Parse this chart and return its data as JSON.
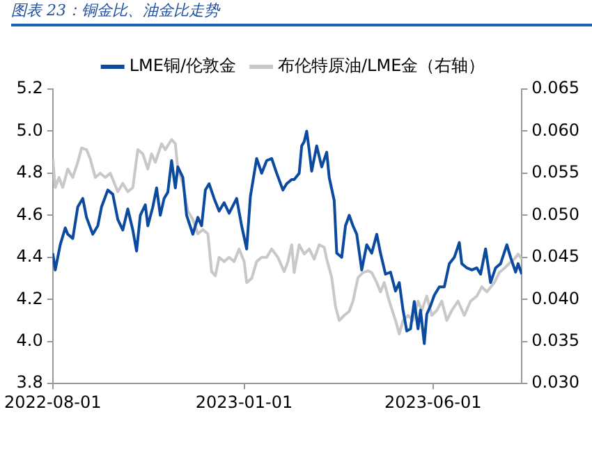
{
  "chart_data": {
    "type": "line",
    "title": "图表 23：铜金比、油金比走势",
    "xlim": [
      "2022-08-01",
      "2023-08-11"
    ],
    "xticks": [
      "2022-08-01",
      "2023-01-01",
      "2023-06-01"
    ],
    "ylim": [
      3.8,
      5.2
    ],
    "yticks": [
      3.8,
      {
        "value": 4,
        "label": "4.0"
      },
      4.2,
      4.4,
      4.6,
      4.8,
      {
        "value": 5,
        "label": "5.0"
      },
      5.2
    ],
    "y2lim": [
      0.03,
      0.065
    ],
    "y2ticks": [
      {
        "value": 0.03,
        "label": "0.030"
      },
      0.035,
      {
        "value": 0.04,
        "label": "0.040"
      },
      0.045,
      {
        "value": 0.05,
        "label": "0.050"
      },
      0.055,
      {
        "value": 0.06,
        "label": "0.060"
      },
      0.065
    ],
    "grid": false,
    "legend": "top",
    "marker": "none",
    "line_style": "solid",
    "series": [
      {
        "name": "LME铜/伦敦金",
        "color": "#0b4a9e",
        "x": [
          "2022-08-01",
          "2022-08-03",
          "2022-08-07",
          "2022-08-11",
          "2022-08-13",
          "2022-08-17",
          "2022-08-21",
          "2022-08-25",
          "2022-08-28",
          "2022-09-02",
          "2022-09-06",
          "2022-09-09",
          "2022-09-14",
          "2022-09-18",
          "2022-09-22",
          "2022-09-26",
          "2022-09-30",
          "2022-10-04",
          "2022-10-07",
          "2022-10-10",
          "2022-10-14",
          "2022-10-16",
          "2022-10-20",
          "2022-10-23",
          "2022-10-26",
          "2022-10-29",
          "2022-11-01",
          "2022-11-04",
          "2022-11-07",
          "2022-11-09",
          "2022-11-13",
          "2022-11-16",
          "2022-11-21",
          "2022-11-25",
          "2022-11-28",
          "2022-12-01",
          "2022-12-04",
          "2022-12-08",
          "2022-12-12",
          "2022-12-16",
          "2022-12-20",
          "2022-12-26",
          "2022-12-30",
          "2023-01-03",
          "2023-01-06",
          "2023-01-11",
          "2023-01-15",
          "2023-01-19",
          "2023-01-23",
          "2023-01-27",
          "2023-02-01",
          "2023-02-04",
          "2023-02-08",
          "2023-02-10",
          "2023-02-14",
          "2023-02-16",
          "2023-02-18",
          "2023-02-20",
          "2023-02-22",
          "2023-02-24",
          "2023-02-28",
          "2023-03-04",
          "2023-03-08",
          "2023-03-10",
          "2023-03-14",
          "2023-03-16",
          "2023-03-20",
          "2023-03-23",
          "2023-03-26",
          "2023-03-29",
          "2023-04-01",
          "2023-04-05",
          "2023-04-09",
          "2023-04-13",
          "2023-04-17",
          "2023-04-20",
          "2023-04-24",
          "2023-04-28",
          "2023-05-02",
          "2023-05-05",
          "2023-05-08",
          "2023-05-11",
          "2023-05-14",
          "2023-05-17",
          "2023-05-20",
          "2023-05-22",
          "2023-05-25",
          "2023-05-27",
          "2023-05-30",
          "2023-06-02",
          "2023-06-06",
          "2023-06-10",
          "2023-06-14",
          "2023-06-18",
          "2023-06-22",
          "2023-06-24",
          "2023-06-28",
          "2023-07-02",
          "2023-07-06",
          "2023-07-09",
          "2023-07-13",
          "2023-07-17",
          "2023-07-21",
          "2023-07-25",
          "2023-07-30",
          "2023-08-02",
          "2023-08-06",
          "2023-08-08",
          "2023-08-11"
        ],
        "values": [
          4.42,
          4.34,
          4.46,
          4.54,
          4.51,
          4.49,
          4.64,
          4.68,
          4.59,
          4.51,
          4.55,
          4.64,
          4.72,
          4.7,
          4.58,
          4.53,
          4.63,
          4.53,
          4.43,
          4.6,
          4.65,
          4.55,
          4.64,
          4.73,
          4.6,
          4.68,
          4.71,
          4.86,
          4.73,
          4.83,
          4.78,
          4.6,
          4.51,
          4.59,
          4.55,
          4.72,
          4.75,
          4.68,
          4.62,
          4.66,
          4.61,
          4.68,
          4.55,
          4.44,
          4.69,
          4.87,
          4.8,
          4.86,
          4.87,
          4.8,
          4.72,
          4.75,
          4.77,
          4.77,
          4.8,
          4.93,
          4.95,
          5.0,
          4.91,
          4.81,
          4.93,
          4.83,
          4.9,
          4.78,
          4.67,
          4.42,
          4.4,
          4.55,
          4.6,
          4.55,
          4.51,
          4.34,
          4.46,
          4.42,
          4.51,
          4.42,
          4.32,
          4.33,
          4.24,
          4.28,
          4.15,
          4.05,
          4.06,
          4.19,
          4.06,
          4.15,
          3.99,
          4.13,
          4.17,
          4.22,
          4.26,
          4.26,
          4.37,
          4.4,
          4.47,
          4.37,
          4.35,
          4.34,
          4.35,
          4.32,
          4.44,
          4.28,
          4.35,
          4.37,
          4.46,
          4.4,
          4.33,
          4.37,
          4.32
        ]
      },
      {
        "name": "布伦特原油/LME金（右轴）",
        "color": "#c8c8c8",
        "axis": "y2",
        "x": [
          "2022-08-01",
          "2022-08-03",
          "2022-08-06",
          "2022-08-09",
          "2022-08-13",
          "2022-08-17",
          "2022-08-21",
          "2022-08-24",
          "2022-08-28",
          "2022-08-31",
          "2022-09-04",
          "2022-09-08",
          "2022-09-12",
          "2022-09-16",
          "2022-09-22",
          "2022-09-26",
          "2022-09-30",
          "2022-10-04",
          "2022-10-08",
          "2022-10-12",
          "2022-10-16",
          "2022-10-19",
          "2022-10-22",
          "2022-10-27",
          "2022-10-30",
          "2022-11-04",
          "2022-11-07",
          "2022-11-09",
          "2022-11-13",
          "2022-11-17",
          "2022-11-21",
          "2022-11-25",
          "2022-11-29",
          "2022-12-03",
          "2022-12-06",
          "2022-12-09",
          "2022-12-12",
          "2022-12-16",
          "2022-12-20",
          "2022-12-24",
          "2022-12-28",
          "2023-01-01",
          "2023-01-03",
          "2023-01-07",
          "2023-01-11",
          "2023-01-15",
          "2023-01-19",
          "2023-01-23",
          "2023-01-28",
          "2023-02-02",
          "2023-02-05",
          "2023-02-08",
          "2023-02-10",
          "2023-02-14",
          "2023-02-18",
          "2023-02-22",
          "2023-02-26",
          "2023-03-02",
          "2023-03-06",
          "2023-03-08",
          "2023-03-12",
          "2023-03-15",
          "2023-03-18",
          "2023-03-22",
          "2023-03-26",
          "2023-03-29",
          "2023-04-02",
          "2023-04-06",
          "2023-04-10",
          "2023-04-13",
          "2023-04-17",
          "2023-04-20",
          "2023-04-23",
          "2023-04-27",
          "2023-05-02",
          "2023-05-05",
          "2023-05-08",
          "2023-05-12",
          "2023-05-16",
          "2023-05-20",
          "2023-05-23",
          "2023-05-27",
          "2023-05-31",
          "2023-06-04",
          "2023-06-08",
          "2023-06-12",
          "2023-06-16",
          "2023-06-21",
          "2023-06-26",
          "2023-07-01",
          "2023-07-06",
          "2023-07-10",
          "2023-07-14",
          "2023-07-20",
          "2023-07-24",
          "2023-07-28",
          "2023-08-01",
          "2023-08-05",
          "2023-08-08",
          "2023-08-11"
        ],
        "values": [
          0.0567,
          0.0533,
          0.0545,
          0.0533,
          0.0555,
          0.0545,
          0.0563,
          0.058,
          0.0578,
          0.0567,
          0.0545,
          0.055,
          0.0545,
          0.055,
          0.0528,
          0.0538,
          0.0528,
          0.0533,
          0.0578,
          0.0573,
          0.0555,
          0.0573,
          0.0563,
          0.0585,
          0.0578,
          0.059,
          0.0585,
          0.0555,
          0.0538,
          0.0505,
          0.0495,
          0.0478,
          0.0483,
          0.0478,
          0.0433,
          0.0428,
          0.045,
          0.0445,
          0.045,
          0.0445,
          0.046,
          0.0445,
          0.042,
          0.0425,
          0.0445,
          0.045,
          0.045,
          0.046,
          0.045,
          0.0433,
          0.0445,
          0.0465,
          0.0432,
          0.0465,
          0.0454,
          0.046,
          0.0448,
          0.0465,
          0.0462,
          0.0448,
          0.0426,
          0.0392,
          0.0375,
          0.0381,
          0.0386,
          0.0398,
          0.0426,
          0.0432,
          0.0434,
          0.0432,
          0.042,
          0.0409,
          0.042,
          0.0398,
          0.0375,
          0.0359,
          0.0375,
          0.0381,
          0.0375,
          0.0398,
          0.0387,
          0.0404,
          0.0381,
          0.0387,
          0.0398,
          0.0375,
          0.0387,
          0.0398,
          0.0381,
          0.0398,
          0.0404,
          0.0415,
          0.0409,
          0.042,
          0.0432,
          0.0437,
          0.0443,
          0.0448,
          0.0454,
          0.0448
        ]
      }
    ]
  }
}
